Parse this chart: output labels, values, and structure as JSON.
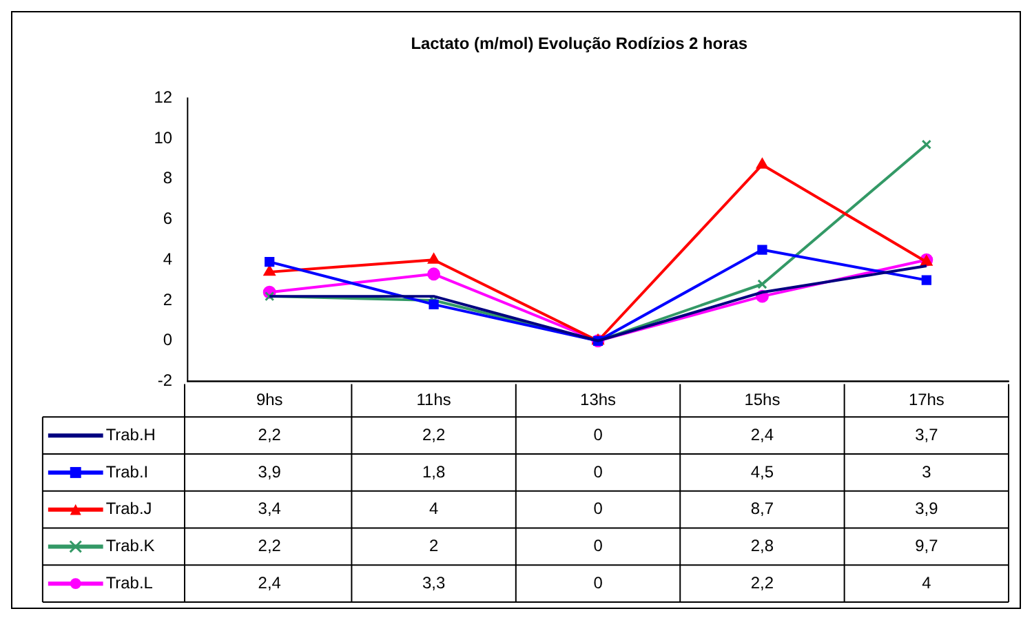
{
  "chart_data": {
    "type": "line",
    "title": "Lactato (m/mol) Evolução Rodízios 2 horas",
    "categories": [
      "9hs",
      "11hs",
      "13hs",
      "15hs",
      "17hs"
    ],
    "series": [
      {
        "name": "Trab.H",
        "color": "#000080",
        "marker": "none",
        "values": [
          2.2,
          2.2,
          0,
          2.4,
          3.7
        ],
        "value_labels": [
          "2,2",
          "2,2",
          "0",
          "2,4",
          "3,7"
        ]
      },
      {
        "name": "Trab.I",
        "color": "#0000ff",
        "marker": "square",
        "values": [
          3.9,
          1.8,
          0,
          4.5,
          3
        ],
        "value_labels": [
          "3,9",
          "1,8",
          "0",
          "4,5",
          "3"
        ]
      },
      {
        "name": "Trab.J",
        "color": "#ff0000",
        "marker": "triangle",
        "values": [
          3.4,
          4,
          0,
          8.7,
          3.9
        ],
        "value_labels": [
          "3,4",
          "4",
          "0",
          "8,7",
          "3,9"
        ]
      },
      {
        "name": "Trab.K",
        "color": "#339966",
        "marker": "cross",
        "values": [
          2.2,
          2,
          0,
          2.8,
          9.7
        ],
        "value_labels": [
          "2,2",
          "2",
          "0",
          "2,8",
          "9,7"
        ]
      },
      {
        "name": "Trab.L",
        "color": "#ff00ff",
        "marker": "circle",
        "values": [
          2.4,
          3.3,
          0,
          2.2,
          4
        ],
        "value_labels": [
          "2,4",
          "3,3",
          "0",
          "2,2",
          "4"
        ]
      }
    ],
    "ylim": [
      -2,
      12
    ],
    "yticks": [
      -2,
      0,
      2,
      4,
      6,
      8,
      10,
      12
    ],
    "grid": false,
    "legend": "bottom left"
  }
}
